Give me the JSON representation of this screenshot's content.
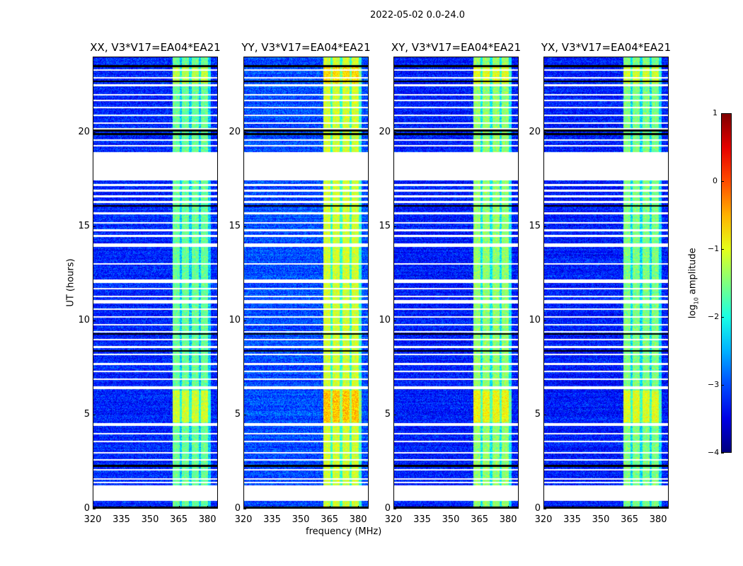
{
  "chart_data": {
    "type": "heatmap",
    "title": "2022-05-02 0.0-24.0",
    "xlabel": "frequency (MHz)",
    "ylabel": "UT (hours)",
    "xlim": [
      320,
      385.5
    ],
    "ylim": [
      0,
      24
    ],
    "xticks": [
      "320",
      "335",
      "350",
      "365",
      "380"
    ],
    "yticks": [
      "0",
      "5",
      "10",
      "15",
      "20"
    ],
    "panels": [
      {
        "title": "XX, V3*V17=EA04*EA21",
        "band_level": -1.6,
        "bg_level": -3.2
      },
      {
        "title": "YY, V3*V17=EA04*EA21",
        "band_level": -1.1,
        "bg_level": -3.0
      },
      {
        "title": "XY, V3*V17=EA04*EA21",
        "band_level": -1.4,
        "bg_level": -3.25
      },
      {
        "title": "YX, V3*V17=EA04*EA21",
        "band_level": -1.5,
        "bg_level": -3.25
      }
    ],
    "bright_band_mhz": [
      361.5,
      381.5
    ],
    "flagged_hours": [
      [
        17.45,
        18.95
      ],
      [
        0.45,
        1.27
      ]
    ],
    "colorbar": {
      "label": "log",
      "label_sub": "10",
      "label_rest": " amplitude",
      "range": [
        -4,
        1
      ],
      "ticks": [
        "1",
        "0",
        "−1",
        "−2",
        "−3",
        "−4"
      ],
      "colormap": "jet"
    }
  }
}
